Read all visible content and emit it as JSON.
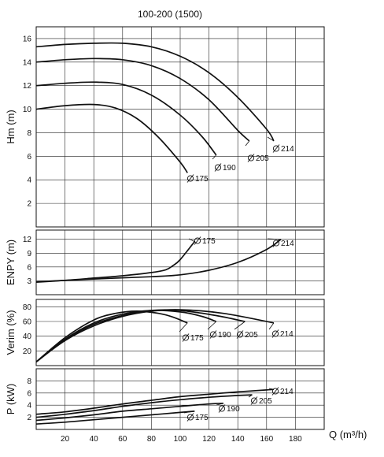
{
  "chart_data": [
    {
      "type": "line",
      "title": "100-200 (1500)",
      "ylabel": "Hm (m)",
      "xlim": [
        0,
        200
      ],
      "ylim": [
        0,
        17
      ],
      "yticks": [
        2,
        4,
        6,
        8,
        10,
        12,
        14,
        16
      ],
      "grid": true,
      "series": [
        {
          "name": "175",
          "x": [
            0,
            20,
            40,
            55,
            70,
            85,
            100,
            105
          ],
          "y": [
            10.0,
            10.3,
            10.4,
            10.1,
            9.2,
            7.6,
            5.5,
            4.6
          ]
        },
        {
          "name": "190",
          "x": [
            0,
            20,
            40,
            60,
            80,
            100,
            115,
            125
          ],
          "y": [
            12.0,
            12.2,
            12.3,
            12.1,
            11.2,
            9.5,
            7.7,
            6.1
          ]
        },
        {
          "name": "205",
          "x": [
            0,
            20,
            40,
            60,
            80,
            100,
            120,
            140,
            148
          ],
          "y": [
            14.0,
            14.2,
            14.3,
            14.2,
            13.7,
            12.6,
            10.8,
            8.2,
            7.3
          ]
        },
        {
          "name": "214",
          "x": [
            0,
            20,
            40,
            60,
            80,
            100,
            120,
            140,
            160,
            165
          ],
          "y": [
            15.3,
            15.5,
            15.6,
            15.6,
            15.3,
            14.5,
            13.1,
            11.0,
            8.3,
            7.3
          ]
        }
      ]
    },
    {
      "type": "line",
      "ylabel": "ENPY (m)",
      "xlim": [
        0,
        200
      ],
      "ylim": [
        0,
        14
      ],
      "yticks": [
        3,
        6,
        9,
        12
      ],
      "grid": true,
      "series": [
        {
          "name": "175",
          "x": [
            0,
            20,
            40,
            60,
            80,
            90,
            95,
            100,
            110
          ],
          "y": [
            2.7,
            3.1,
            3.6,
            4.1,
            4.8,
            5.4,
            6.3,
            7.6,
            11.5
          ]
        },
        {
          "name": "214",
          "x": [
            0,
            40,
            80,
            100,
            120,
            140,
            160,
            170
          ],
          "y": [
            2.8,
            3.4,
            3.9,
            4.3,
            5.3,
            7.0,
            9.8,
            12.0
          ]
        }
      ]
    },
    {
      "type": "line",
      "ylabel": "Verim (%)",
      "xlim": [
        0,
        200
      ],
      "ylim": [
        0,
        90
      ],
      "yticks": [
        20,
        40,
        60,
        80
      ],
      "grid": true,
      "series": [
        {
          "name": "175",
          "x": [
            0,
            20,
            40,
            55,
            70,
            85,
            95,
            105
          ],
          "y": [
            5,
            38,
            62,
            71,
            74,
            71,
            66,
            58
          ]
        },
        {
          "name": "190",
          "x": [
            0,
            20,
            40,
            60,
            80,
            100,
            115,
            125
          ],
          "y": [
            5,
            36,
            58,
            70,
            75,
            73,
            67,
            60
          ]
        },
        {
          "name": "205",
          "x": [
            0,
            20,
            40,
            60,
            80,
            100,
            125,
            145
          ],
          "y": [
            5,
            35,
            56,
            68,
            75,
            75,
            68,
            60
          ]
        },
        {
          "name": "214",
          "x": [
            0,
            20,
            40,
            60,
            80,
            100,
            130,
            165
          ],
          "y": [
            5,
            34,
            54,
            67,
            74,
            76,
            71,
            58
          ]
        }
      ]
    },
    {
      "type": "line",
      "ylabel": "P (kW)",
      "xlabel": "Q (m³/h)",
      "xlim": [
        0,
        200
      ],
      "ylim": [
        0,
        10
      ],
      "xticks": [
        20,
        40,
        60,
        80,
        100,
        120,
        140,
        160,
        180
      ],
      "yticks": [
        2,
        4,
        6,
        8
      ],
      "grid": true,
      "series": [
        {
          "name": "175",
          "x": [
            0,
            20,
            40,
            60,
            80,
            100,
            110
          ],
          "y": [
            0.9,
            1.2,
            1.6,
            2.0,
            2.4,
            2.8,
            3.0
          ]
        },
        {
          "name": "190",
          "x": [
            0,
            20,
            40,
            60,
            80,
            100,
            120,
            130
          ],
          "y": [
            1.5,
            1.9,
            2.4,
            3.0,
            3.4,
            3.8,
            4.2,
            4.3
          ]
        },
        {
          "name": "205",
          "x": [
            0,
            20,
            40,
            60,
            80,
            100,
            120,
            140,
            150
          ],
          "y": [
            2.0,
            2.5,
            3.1,
            3.8,
            4.4,
            4.9,
            5.3,
            5.6,
            5.7
          ]
        },
        {
          "name": "214",
          "x": [
            0,
            20,
            40,
            60,
            80,
            100,
            120,
            140,
            160,
            165
          ],
          "y": [
            2.5,
            2.9,
            3.5,
            4.2,
            4.8,
            5.4,
            5.8,
            6.2,
            6.5,
            6.6
          ]
        }
      ]
    }
  ]
}
